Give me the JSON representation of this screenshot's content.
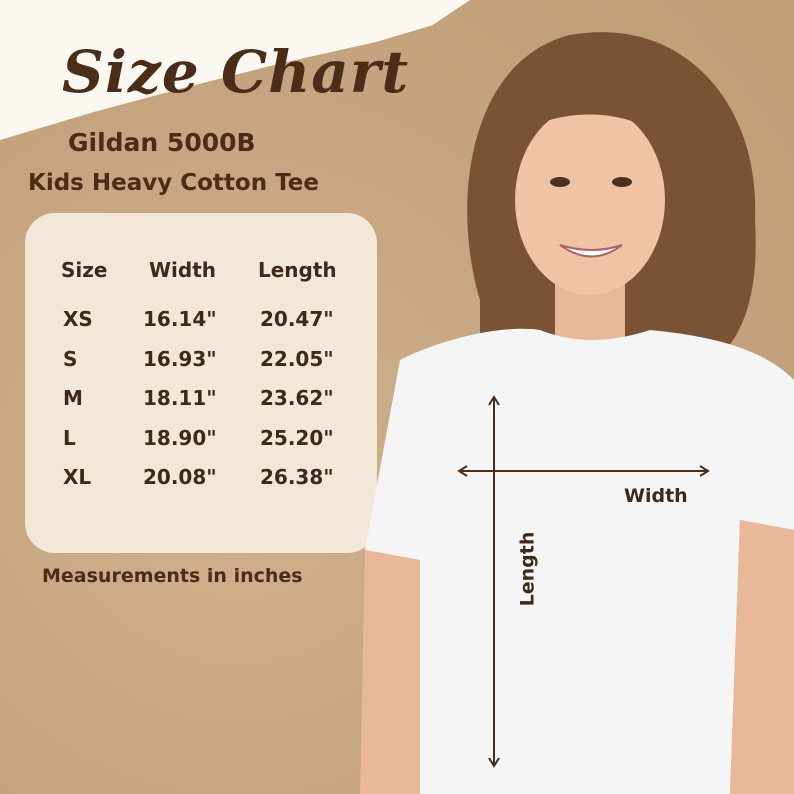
{
  "title": "Size Chart",
  "product": "Gildan 5000B",
  "product_type": "Kids Heavy Cotton Tee",
  "table": {
    "headers": [
      "Size",
      "Width",
      "Length"
    ],
    "rows": [
      [
        "XS",
        "16.14\"",
        "20.47\""
      ],
      [
        "S",
        "16.93\"",
        "22.05\""
      ],
      [
        "M",
        "18.11\"",
        "23.62\""
      ],
      [
        "L",
        "18.90\"",
        "25.20\""
      ],
      [
        "XL",
        "20.08\"",
        "26.38\""
      ]
    ]
  },
  "note": "Measurements in inches",
  "diagram": {
    "width_label": "Width",
    "length_label": "Length"
  },
  "colors": {
    "text": "#4a2d18",
    "card": "#f3e7d8",
    "background": "#c4a57f"
  }
}
